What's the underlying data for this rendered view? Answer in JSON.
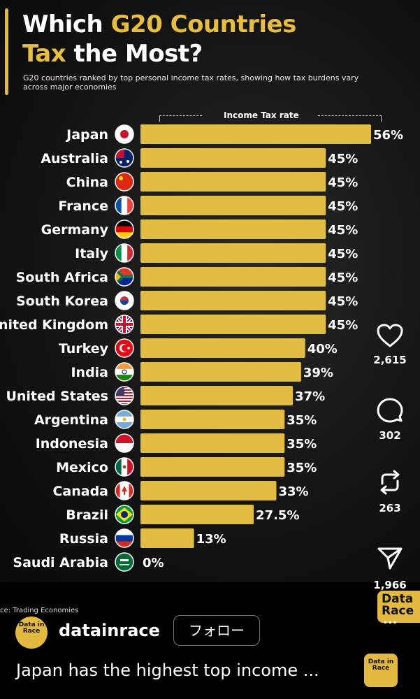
{
  "header": {
    "title_line1_white": "Which ",
    "title_line1_yellow": "G20 Countries",
    "title_line2_yellow": "Tax",
    "title_line2_white": " the Most?",
    "subtitle": "G20 countries ranked by top personal income tax rates, showing how tax burdens vary across major economies",
    "axis_title": "Income Tax rate"
  },
  "chart_data": {
    "type": "bar",
    "orientation": "horizontal",
    "title": "Which G20 Countries Tax the Most?",
    "subtitle": "G20 countries ranked by top personal income tax rates, showing how tax burdens vary across major economies",
    "xlabel": "Income Tax rate",
    "categories": [
      "Japan",
      "Australia",
      "China",
      "France",
      "Germany",
      "Italy",
      "South Africa",
      "South Korea",
      "nited Kingdom",
      "Turkey",
      "India",
      "United States",
      "Argentina",
      "Indonesia",
      "Mexico",
      "Canada",
      "Brazil",
      "Russia",
      "Saudi Arabia"
    ],
    "values": [
      56,
      45,
      45,
      45,
      45,
      45,
      45,
      45,
      45,
      40,
      39,
      37,
      35,
      35,
      35,
      33,
      27.5,
      13,
      0
    ],
    "labels": [
      "56%",
      "45%",
      "45%",
      "45%",
      "45%",
      "45%",
      "45%",
      "45%",
      "45%",
      "40%",
      "39%",
      "37%",
      "35%",
      "35%",
      "35%",
      "33%",
      "27.5%",
      "13%",
      "0%"
    ],
    "bar_color": "#e3bd42",
    "xlim": [
      0,
      56
    ],
    "grid": false
  },
  "flags": [
    "japan-flag-icon",
    "australia-flag-icon",
    "china-flag-icon",
    "france-flag-icon",
    "germany-flag-icon",
    "italy-flag-icon",
    "south-africa-flag-icon",
    "south-korea-flag-icon",
    "united-kingdom-flag-icon",
    "turkey-flag-icon",
    "india-flag-icon",
    "united-states-flag-icon",
    "argentina-flag-icon",
    "indonesia-flag-icon",
    "mexico-flag-icon",
    "canada-flag-icon",
    "brazil-flag-icon",
    "russia-flag-icon",
    "saudi-arabia-flag-icon"
  ],
  "actions": {
    "likes": "2,615",
    "comments": "302",
    "reposts": "263",
    "shares": "1,966",
    "like_icon": "heart-icon",
    "comment_icon": "comment-bubble-icon",
    "repost_icon": "repost-icon",
    "share_icon": "paper-plane-icon",
    "more_icon": "more-dots-icon"
  },
  "footer": {
    "source": "ce: Trading Economies",
    "username": "datainrace",
    "follow_label": "フォロー",
    "caption": "Japan has the highest top income ...",
    "logo_text": "Data in Race",
    "corner_logo_text": "Data Race",
    "more_label": "..."
  },
  "colors": {
    "accent": "#e3b93f",
    "background": "#000000"
  }
}
